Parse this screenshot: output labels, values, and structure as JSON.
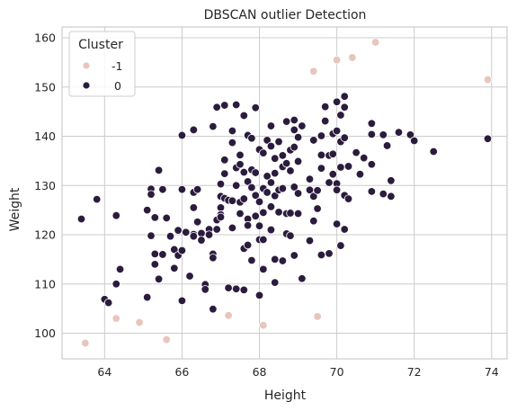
{
  "chart_data": {
    "type": "scatter",
    "title": "DBSCAN outlier Detection",
    "xlabel": "Height",
    "ylabel": "Weight",
    "xlim": [
      62.9,
      74.4
    ],
    "ylim": [
      94.8,
      162.2
    ],
    "xticks": [
      64,
      66,
      68,
      70,
      72,
      74
    ],
    "yticks": [
      100,
      110,
      120,
      130,
      140,
      150,
      160
    ],
    "grid": true,
    "legend": {
      "title": "Cluster",
      "placement": "top-left",
      "entries": [
        {
          "label": "-1",
          "color": "#e8c6bd"
        },
        {
          "label": "0",
          "color": "#2b1c3d"
        }
      ]
    },
    "series": [
      {
        "name": "-1",
        "color": "#e8c6bd",
        "points": [
          [
            63.5,
            98.0
          ],
          [
            64.3,
            103.0
          ],
          [
            64.9,
            102.2
          ],
          [
            65.6,
            98.7
          ],
          [
            67.2,
            103.6
          ],
          [
            68.1,
            101.6
          ],
          [
            69.5,
            103.4
          ],
          [
            69.4,
            153.2
          ],
          [
            70.0,
            155.5
          ],
          [
            70.4,
            156.0
          ],
          [
            71.0,
            159.1
          ],
          [
            73.9,
            151.5
          ]
        ]
      },
      {
        "name": "0",
        "color": "#2b1c3d",
        "points": [
          [
            63.4,
            123.2
          ],
          [
            63.8,
            127.2
          ],
          [
            64.0,
            106.9
          ],
          [
            64.1,
            106.2
          ],
          [
            64.3,
            110.0
          ],
          [
            64.3,
            123.9
          ],
          [
            64.4,
            113.0
          ],
          [
            65.1,
            125.0
          ],
          [
            65.1,
            107.3
          ],
          [
            65.2,
            129.3
          ],
          [
            65.2,
            128.2
          ],
          [
            65.2,
            119.8
          ],
          [
            65.3,
            116.1
          ],
          [
            65.3,
            123.5
          ],
          [
            65.3,
            114.0
          ],
          [
            65.4,
            133.1
          ],
          [
            65.4,
            111.0
          ],
          [
            65.5,
            116.0
          ],
          [
            65.5,
            129.2
          ],
          [
            65.6,
            123.4
          ],
          [
            65.7,
            119.7
          ],
          [
            65.8,
            113.2
          ],
          [
            65.8,
            117.0
          ],
          [
            65.9,
            120.9
          ],
          [
            65.9,
            115.8
          ],
          [
            66.0,
            140.2
          ],
          [
            66.0,
            129.2
          ],
          [
            66.0,
            116.8
          ],
          [
            66.0,
            106.6
          ],
          [
            66.1,
            120.5
          ],
          [
            66.2,
            111.6
          ],
          [
            66.3,
            141.3
          ],
          [
            66.3,
            128.6
          ],
          [
            66.3,
            125.5
          ],
          [
            66.3,
            120.1
          ],
          [
            66.3,
            119.7
          ],
          [
            66.4,
            129.2
          ],
          [
            66.4,
            122.6
          ],
          [
            66.5,
            120.3
          ],
          [
            66.5,
            118.9
          ],
          [
            66.6,
            109.9
          ],
          [
            66.6,
            108.9
          ],
          [
            66.7,
            121.1
          ],
          [
            66.7,
            120.0
          ],
          [
            66.8,
            142.0
          ],
          [
            66.8,
            116.1
          ],
          [
            66.8,
            115.3
          ],
          [
            66.8,
            104.9
          ],
          [
            66.9,
            145.9
          ],
          [
            66.9,
            123.0
          ],
          [
            66.9,
            121.1
          ],
          [
            67.0,
            130.3
          ],
          [
            67.0,
            127.8
          ],
          [
            67.0,
            125.5
          ],
          [
            67.0,
            124.1
          ],
          [
            67.0,
            123.6
          ],
          [
            67.1,
            146.3
          ],
          [
            67.1,
            135.2
          ],
          [
            67.1,
            132.4
          ],
          [
            67.1,
            127.4
          ],
          [
            67.2,
            109.2
          ],
          [
            67.2,
            127.0
          ],
          [
            67.3,
            141.1
          ],
          [
            67.3,
            138.7
          ],
          [
            67.3,
            126.9
          ],
          [
            67.3,
            121.4
          ],
          [
            67.4,
            146.4
          ],
          [
            67.4,
            133.6
          ],
          [
            67.4,
            130.0
          ],
          [
            67.4,
            109.0
          ],
          [
            67.5,
            136.2
          ],
          [
            67.5,
            134.3
          ],
          [
            67.5,
            126.6
          ],
          [
            67.5,
            124.3
          ],
          [
            67.6,
            144.2
          ],
          [
            67.6,
            132.7
          ],
          [
            67.6,
            127.3
          ],
          [
            67.6,
            117.2
          ],
          [
            67.6,
            108.8
          ],
          [
            67.7,
            140.2
          ],
          [
            67.7,
            130.8
          ],
          [
            67.7,
            123.2
          ],
          [
            67.7,
            121.9
          ],
          [
            67.7,
            117.9
          ],
          [
            67.8,
            139.6
          ],
          [
            67.8,
            133.2
          ],
          [
            67.8,
            129.6
          ],
          [
            67.8,
            114.8
          ],
          [
            67.9,
            145.8
          ],
          [
            67.9,
            132.6
          ],
          [
            67.9,
            128.0
          ],
          [
            67.9,
            123.8
          ],
          [
            68.0,
            137.3
          ],
          [
            68.0,
            126.7
          ],
          [
            68.0,
            121.8
          ],
          [
            68.0,
            119.0
          ],
          [
            68.0,
            107.7
          ],
          [
            68.1,
            136.6
          ],
          [
            68.1,
            129.4
          ],
          [
            68.1,
            124.5
          ],
          [
            68.1,
            119.0
          ],
          [
            68.1,
            113.0
          ],
          [
            68.2,
            139.2
          ],
          [
            68.2,
            131.9
          ],
          [
            68.2,
            128.6
          ],
          [
            68.3,
            142.1
          ],
          [
            68.3,
            138.0
          ],
          [
            68.3,
            130.6
          ],
          [
            68.3,
            125.7
          ],
          [
            68.3,
            121.0
          ],
          [
            68.4,
            135.5
          ],
          [
            68.4,
            132.5
          ],
          [
            68.4,
            127.9
          ],
          [
            68.4,
            115.0
          ],
          [
            68.4,
            110.3
          ],
          [
            68.5,
            138.9
          ],
          [
            68.5,
            129.1
          ],
          [
            68.5,
            124.6
          ],
          [
            68.6,
            136.1
          ],
          [
            68.6,
            133.8
          ],
          [
            68.6,
            129.4
          ],
          [
            68.6,
            114.7
          ],
          [
            68.7,
            143.0
          ],
          [
            68.7,
            134.5
          ],
          [
            68.7,
            124.3
          ],
          [
            68.7,
            120.2
          ],
          [
            68.8,
            137.2
          ],
          [
            68.8,
            133.0
          ],
          [
            68.8,
            124.4
          ],
          [
            68.8,
            119.8
          ],
          [
            68.9,
            143.3
          ],
          [
            68.9,
            141.3
          ],
          [
            68.9,
            137.8
          ],
          [
            68.9,
            129.7
          ],
          [
            68.9,
            115.8
          ],
          [
            69.0,
            139.8
          ],
          [
            69.0,
            134.9
          ],
          [
            69.0,
            128.4
          ],
          [
            69.0,
            124.3
          ],
          [
            69.1,
            142.1
          ],
          [
            69.1,
            111.1
          ],
          [
            69.3,
            131.3
          ],
          [
            69.3,
            129.1
          ],
          [
            69.3,
            118.8
          ],
          [
            69.4,
            139.2
          ],
          [
            69.4,
            127.8
          ],
          [
            69.4,
            122.8
          ],
          [
            69.5,
            129.0
          ],
          [
            69.5,
            125.3
          ],
          [
            69.6,
            140.1
          ],
          [
            69.6,
            136.2
          ],
          [
            69.6,
            133.5
          ],
          [
            69.6,
            115.9
          ],
          [
            69.7,
            146.0
          ],
          [
            69.7,
            143.1
          ],
          [
            69.8,
            136.1
          ],
          [
            69.8,
            130.6
          ],
          [
            69.8,
            116.2
          ],
          [
            69.9,
            140.5
          ],
          [
            69.9,
            132.3
          ],
          [
            69.9,
            136.4
          ],
          [
            70.0,
            147.0
          ],
          [
            70.0,
            141.1
          ],
          [
            70.0,
            130.4
          ],
          [
            70.0,
            122.2
          ],
          [
            70.0,
            129.1
          ],
          [
            70.1,
            144.3
          ],
          [
            70.1,
            138.9
          ],
          [
            70.1,
            133.7
          ],
          [
            70.1,
            117.8
          ],
          [
            70.2,
            148.1
          ],
          [
            70.2,
            145.9
          ],
          [
            70.2,
            139.7
          ],
          [
            70.2,
            128.0
          ],
          [
            70.2,
            121.1
          ],
          [
            70.3,
            133.9
          ],
          [
            70.3,
            127.3
          ],
          [
            70.5,
            136.7
          ],
          [
            70.6,
            132.3
          ],
          [
            70.7,
            135.6
          ],
          [
            70.9,
            142.6
          ],
          [
            70.9,
            140.4
          ],
          [
            70.9,
            134.3
          ],
          [
            70.9,
            128.8
          ],
          [
            71.2,
            140.3
          ],
          [
            71.2,
            128.3
          ],
          [
            71.3,
            138.1
          ],
          [
            71.4,
            131.0
          ],
          [
            71.4,
            127.8
          ],
          [
            71.6,
            140.8
          ],
          [
            71.9,
            140.3
          ],
          [
            72.0,
            139.1
          ],
          [
            72.5,
            136.9
          ],
          [
            73.9,
            139.5
          ]
        ]
      }
    ]
  }
}
